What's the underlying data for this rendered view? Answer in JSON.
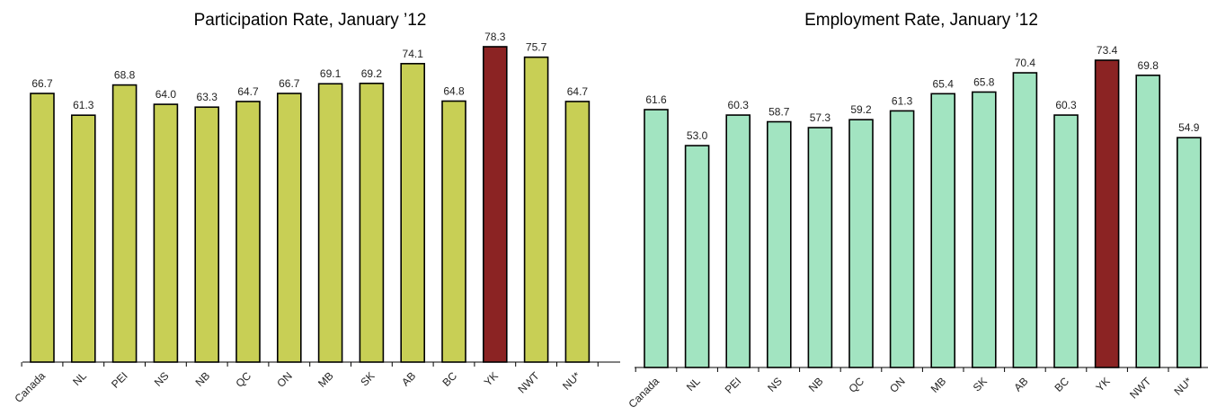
{
  "charts": [
    {
      "id": "participation",
      "bar_color": "#c8cf55",
      "highlight_color": "#8b2323"
    },
    {
      "id": "employment",
      "bar_color": "#a2e4c1",
      "highlight_color": "#8b2323"
    }
  ],
  "chart_data": [
    {
      "type": "bar",
      "title": "Participation Rate, January ’12",
      "xlabel": "",
      "ylabel": "",
      "categories": [
        "Canada",
        "NL",
        "PEI",
        "NS",
        "NB",
        "QC",
        "ON",
        "MB",
        "SK",
        "AB",
        "BC",
        "YK",
        "NWT",
        "NU*"
      ],
      "values": [
        66.7,
        61.3,
        68.8,
        64.0,
        63.3,
        64.7,
        66.7,
        69.1,
        69.2,
        74.1,
        64.8,
        78.3,
        75.7,
        64.7
      ],
      "value_labels": [
        "66.7",
        "61.3",
        "68.8",
        "64.0",
        "63.3",
        "64.7",
        "66.7",
        "69.1",
        "69.2",
        "74.1",
        "64.8",
        "78.3",
        "75.7",
        "64.7"
      ],
      "highlight_category": "YK",
      "ylim": [
        0,
        87
      ],
      "grid": false,
      "legend": "none"
    },
    {
      "type": "bar",
      "title": "Employment Rate, January ’12",
      "xlabel": "",
      "ylabel": "",
      "categories": [
        "Canada",
        "NL",
        "PEI",
        "NS",
        "NB",
        "QC",
        "ON",
        "MB",
        "SK",
        "AB",
        "BC",
        "YK",
        "NWT",
        "NU*"
      ],
      "values": [
        61.6,
        53.0,
        60.3,
        58.7,
        57.3,
        59.2,
        61.3,
        65.4,
        65.8,
        70.4,
        60.3,
        73.4,
        69.8,
        54.9
      ],
      "value_labels": [
        "61.6",
        "53.0",
        "60.3",
        "58.7",
        "57.3",
        "59.2",
        "61.3",
        "65.4",
        "65.8",
        "70.4",
        "60.3",
        "73.4",
        "69.8",
        "54.9"
      ],
      "highlight_category": "YK",
      "ylim": [
        0,
        85
      ],
      "grid": false,
      "legend": "none"
    }
  ]
}
